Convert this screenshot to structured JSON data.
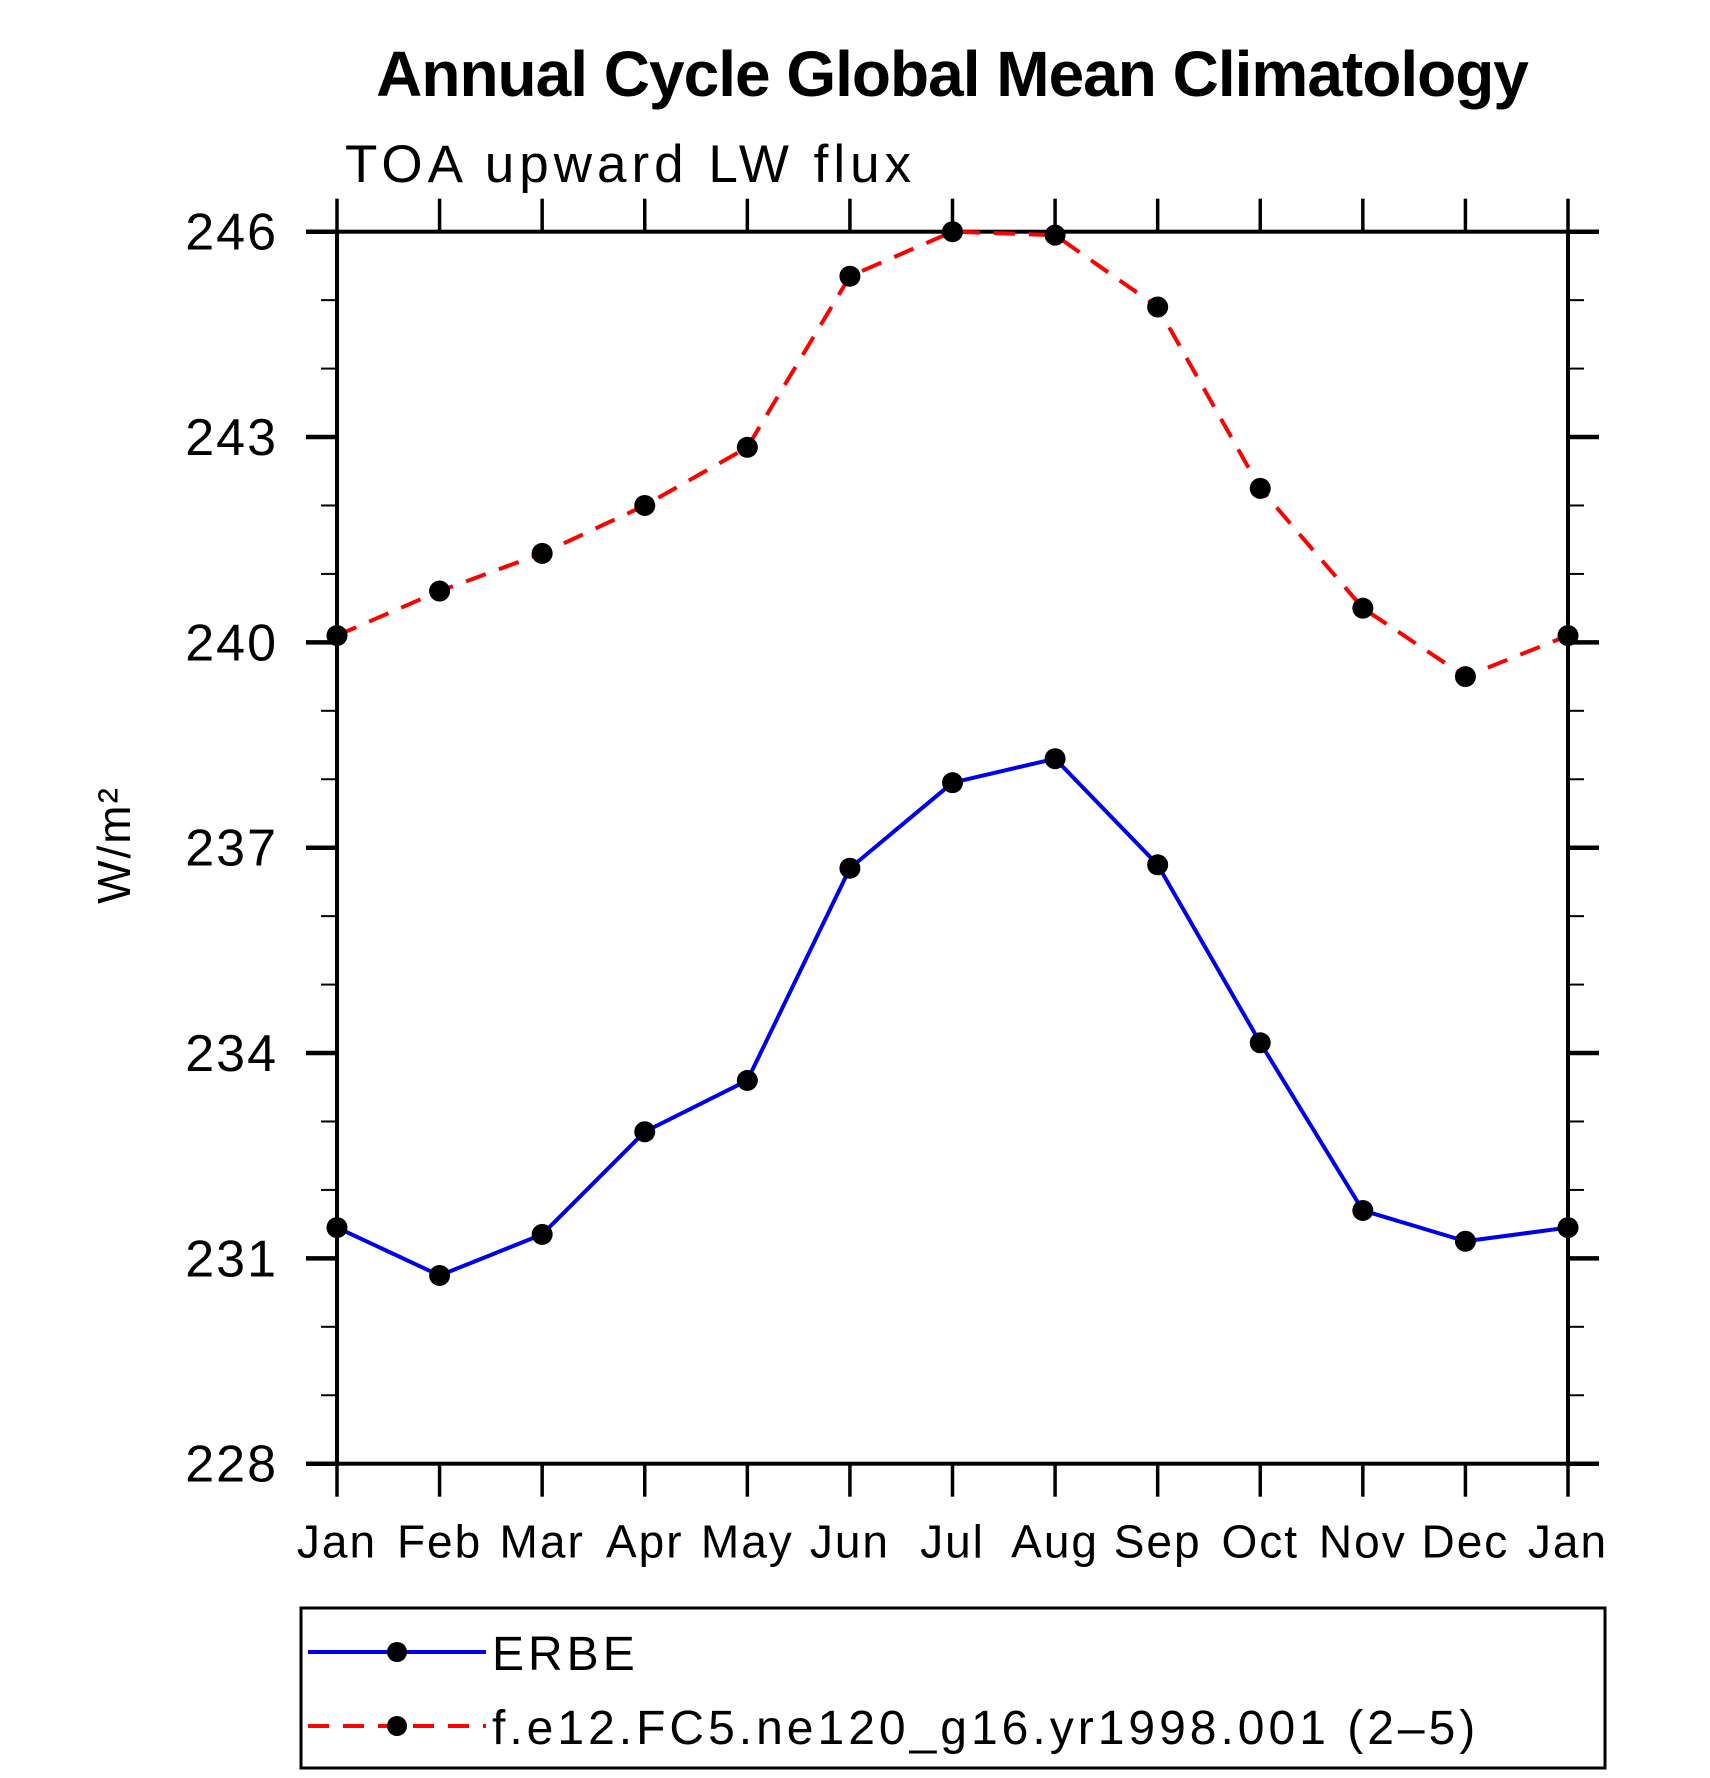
{
  "page": {
    "background": "#ffffff",
    "text_color": "#000000"
  },
  "chart_data": {
    "type": "line",
    "title": "Annual Cycle Global Mean Climatology",
    "subtitle": "TOA upward LW flux",
    "ylabel": "W/m²",
    "xlabel": "",
    "categories": [
      "Jan",
      "Feb",
      "Mar",
      "Apr",
      "May",
      "Jun",
      "Jul",
      "Aug",
      "Sep",
      "Oct",
      "Nov",
      "Dec",
      "Jan"
    ],
    "ylim": [
      228,
      246
    ],
    "y_major_ticks": [
      228,
      231,
      234,
      237,
      240,
      243,
      246
    ],
    "y_minor_tick_step": 1,
    "grid": false,
    "legend_position": "bottom-left-box",
    "marker": {
      "shape": "circle",
      "color": "#000000"
    },
    "series": [
      {
        "name": "ERBE",
        "color": "#0000ee",
        "line_style": "solid",
        "values": [
          231.45,
          230.75,
          231.35,
          232.85,
          233.6,
          236.7,
          237.95,
          238.3,
          236.75,
          234.15,
          231.7,
          231.25,
          231.45
        ]
      },
      {
        "name": "f.e12.FC5.ne120_g16.yr1998.001 (2–5)",
        "color": "#ff0000",
        "line_style": "dashed",
        "values": [
          240.1,
          240.75,
          241.3,
          242.0,
          242.85,
          245.35,
          246.0,
          245.95,
          244.9,
          242.25,
          240.5,
          239.5,
          240.1
        ]
      }
    ]
  }
}
